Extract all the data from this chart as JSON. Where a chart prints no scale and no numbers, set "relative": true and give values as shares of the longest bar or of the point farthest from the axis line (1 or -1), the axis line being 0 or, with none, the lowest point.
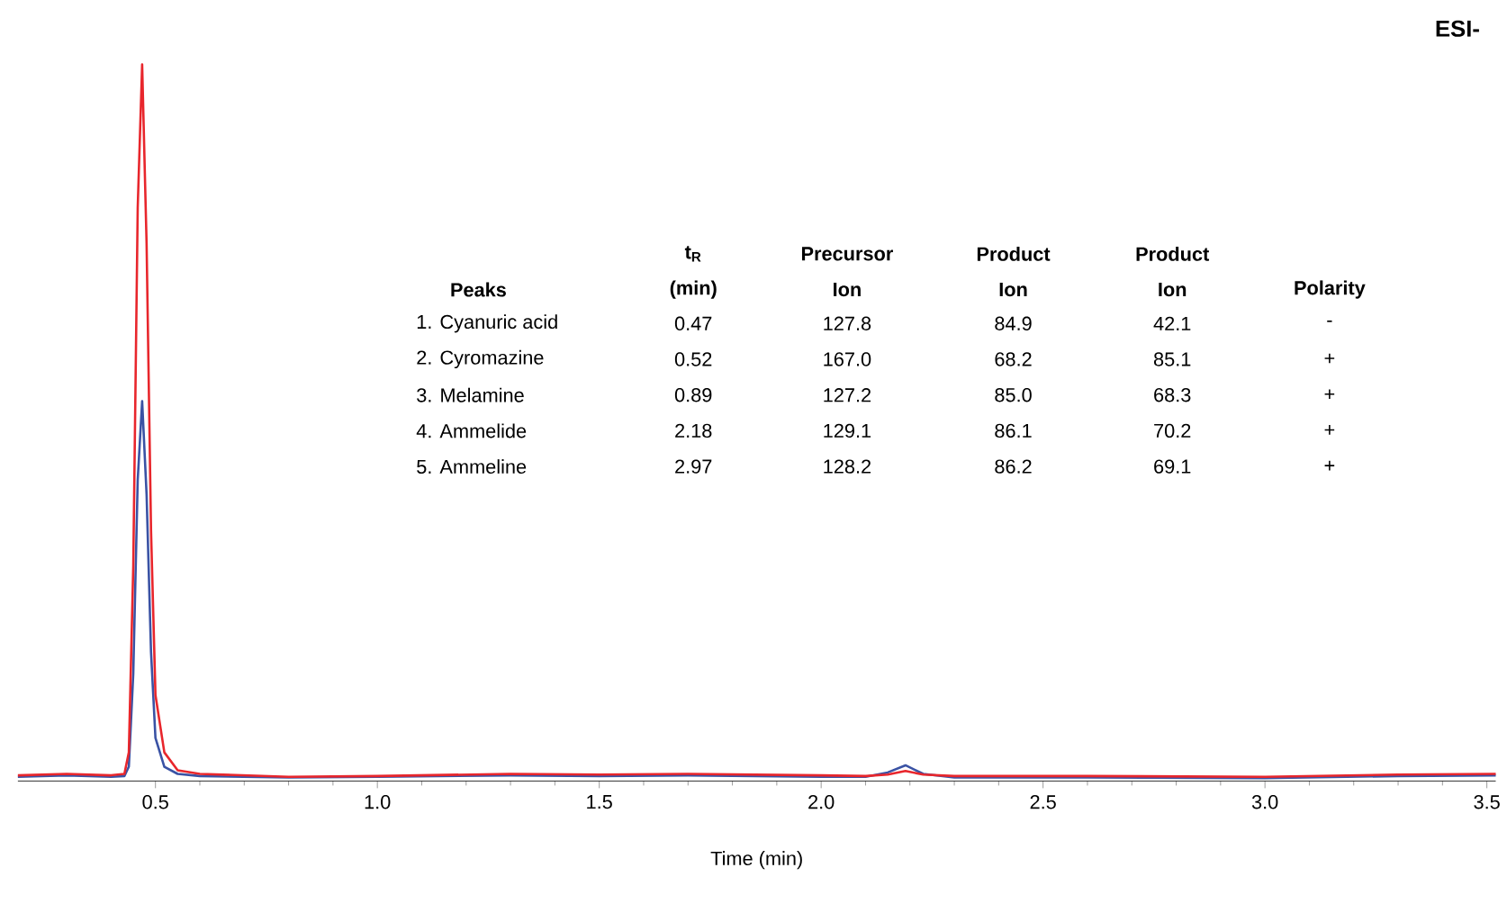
{
  "chart_data": {
    "type": "line",
    "relative": true,
    "xlabel": "Time (min)",
    "xlim": [
      0.19,
      3.52
    ],
    "xticks": [
      0.5,
      {
        "value": 1,
        "label": "1.0"
      },
      1.5,
      {
        "value": 2,
        "label": "2.0"
      },
      2.5,
      {
        "value": 3,
        "label": "3.0"
      },
      3.5
    ],
    "series": [
      {
        "color": "#3a52a4",
        "x": [
          0.19,
          0.3,
          0.4,
          0.43,
          0.44,
          0.45,
          0.46,
          0.47,
          0.48,
          0.49,
          0.5,
          0.52,
          0.55,
          0.6,
          0.8,
          1.0,
          1.3,
          1.5,
          1.7,
          2.0,
          2.1,
          2.15,
          2.19,
          2.23,
          2.3,
          2.6,
          3.0,
          3.3,
          3.52
        ],
        "values": [
          0.006,
          0.008,
          0.006,
          0.007,
          0.02,
          0.15,
          0.42,
          0.53,
          0.4,
          0.18,
          0.06,
          0.02,
          0.01,
          0.007,
          0.005,
          0.006,
          0.008,
          0.007,
          0.008,
          0.006,
          0.006,
          0.012,
          0.022,
          0.01,
          0.005,
          0.005,
          0.004,
          0.007,
          0.008
        ]
      },
      {
        "color": "#e8262c",
        "x": [
          0.19,
          0.3,
          0.4,
          0.43,
          0.44,
          0.45,
          0.46,
          0.47,
          0.48,
          0.49,
          0.5,
          0.52,
          0.55,
          0.6,
          0.8,
          1.0,
          1.3,
          1.5,
          1.7,
          2.0,
          2.1,
          2.15,
          2.19,
          2.23,
          2.3,
          2.6,
          3.0,
          3.3,
          3.52
        ],
        "values": [
          0.008,
          0.01,
          0.008,
          0.01,
          0.04,
          0.3,
          0.8,
          1.0,
          0.75,
          0.35,
          0.12,
          0.04,
          0.015,
          0.01,
          0.006,
          0.007,
          0.01,
          0.009,
          0.01,
          0.008,
          0.007,
          0.009,
          0.014,
          0.009,
          0.007,
          0.007,
          0.006,
          0.009,
          0.01
        ]
      }
    ],
    "annotations": [
      "ESI-",
      "t$_{R}$",
      "Precursor",
      "Product",
      "Product",
      "Peaks",
      "(min)",
      "Ion",
      "Ion",
      "Ion",
      "Polarity",
      "1. Cyanuric acid",
      "0.47",
      "127.8",
      "84.9",
      "42.1",
      "-",
      "2. Cyromazine",
      "0.52",
      "167.0",
      "68.2",
      "85.1",
      "+",
      "3. Melamine",
      "0.89",
      "127.2",
      "85.0",
      "68.3",
      "+",
      "4. Ammelide",
      "2.18",
      "129.1",
      "86.1",
      "70.2",
      "+",
      "5. Ammeline",
      "2.97",
      "128.2",
      "86.2",
      "69.1",
      "+"
    ]
  }
}
